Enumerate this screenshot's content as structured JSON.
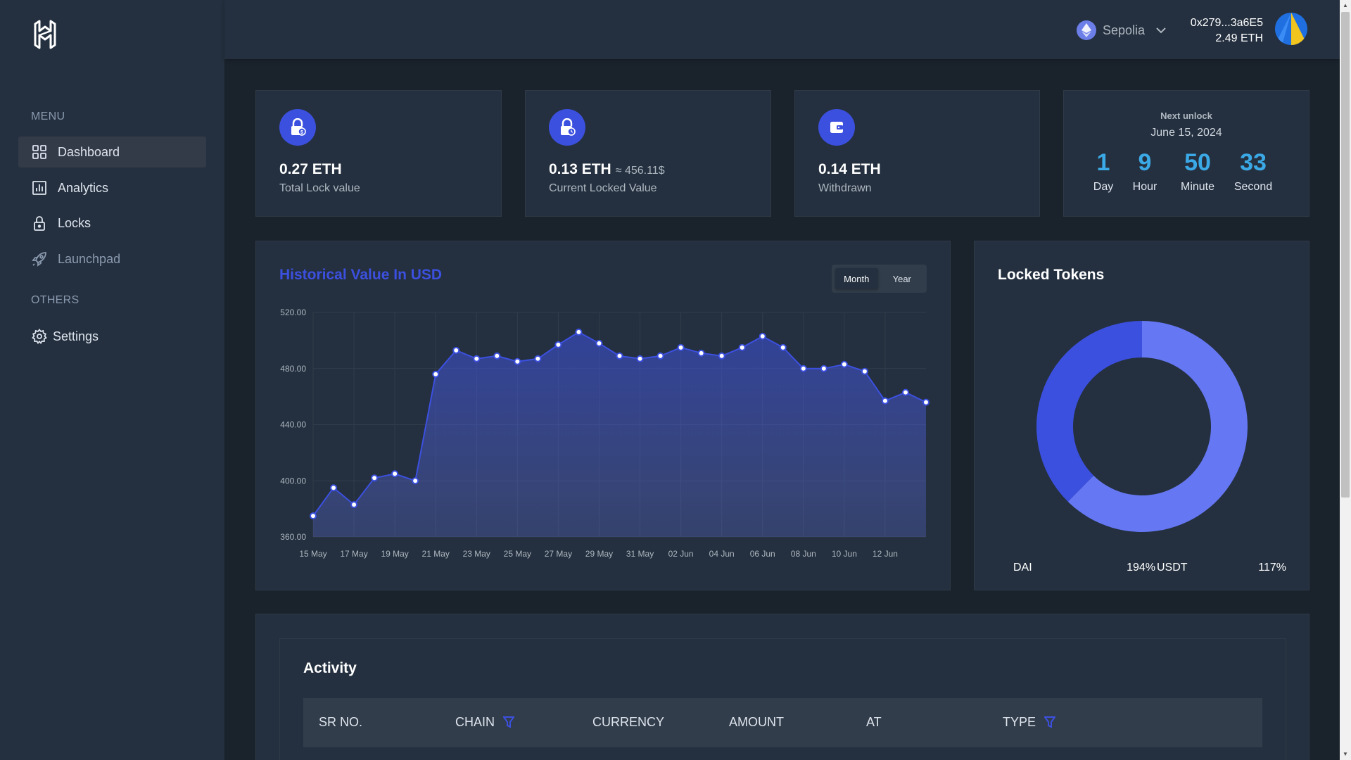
{
  "sidebar": {
    "menu_label": "MENU",
    "others_label": "OTHERS",
    "items": [
      {
        "label": "Dashboard",
        "icon": "grid-icon"
      },
      {
        "label": "Analytics",
        "icon": "chart-icon"
      },
      {
        "label": "Locks",
        "icon": "lock-icon"
      },
      {
        "label": "Launchpad",
        "icon": "rocket-icon"
      }
    ],
    "others": [
      {
        "label": "Settings",
        "icon": "gear-icon"
      }
    ]
  },
  "header": {
    "network": "Sepolia",
    "wallet_address": "0x279...3a6E5",
    "wallet_balance": "2.49 ETH"
  },
  "stats": [
    {
      "value": "0.27 ETH",
      "approx": "",
      "label": "Total Lock value",
      "icon": "lock-coin-icon"
    },
    {
      "value": "0.13 ETH",
      "approx": "≈ 456.11$",
      "label": "Current Locked Value",
      "icon": "lock-clock-icon"
    },
    {
      "value": "0.14 ETH",
      "approx": "",
      "label": "Withdrawn",
      "icon": "wallet-icon"
    }
  ],
  "next_unlock": {
    "title": "Next unlock",
    "date": "June 15, 2024",
    "countdown": [
      {
        "value": "1",
        "label": "Day"
      },
      {
        "value": "9",
        "label": "Hour"
      },
      {
        "value": "50",
        "label": "Minute"
      },
      {
        "value": "33",
        "label": "Second"
      }
    ]
  },
  "history": {
    "title": "Historical Value In USD",
    "toggle": [
      "Month",
      "Year"
    ],
    "active_toggle": "Month"
  },
  "locked_tokens": {
    "title": "Locked Tokens"
  },
  "activity": {
    "title": "Activity",
    "columns": [
      {
        "label": "SR NO.",
        "filter": false
      },
      {
        "label": "CHAIN",
        "filter": true
      },
      {
        "label": "CURRENCY",
        "filter": false
      },
      {
        "label": "AMOUNT",
        "filter": false
      },
      {
        "label": "AT",
        "filter": false
      },
      {
        "label": "TYPE",
        "filter": true
      }
    ]
  },
  "colors": {
    "accent": "#3c50e0",
    "countdown": "#3ba9e6",
    "donut_a": "#3c50e0",
    "donut_b": "#6577f3"
  },
  "chart_data": [
    {
      "type": "area",
      "title": "Historical Value In USD",
      "x": [
        "15 May",
        "16 May",
        "17 May",
        "18 May",
        "19 May",
        "20 May",
        "21 May",
        "22 May",
        "23 May",
        "24 May",
        "25 May",
        "26 May",
        "27 May",
        "28 May",
        "29 May",
        "30 May",
        "31 May",
        "01 Jun",
        "02 Jun",
        "03 Jun",
        "04 Jun",
        "05 Jun",
        "06 Jun",
        "07 Jun",
        "08 Jun",
        "09 Jun",
        "10 Jun",
        "11 Jun",
        "12 Jun",
        "13 Jun",
        "13 Jun"
      ],
      "x_ticks": [
        "15 May",
        "17 May",
        "19 May",
        "21 May",
        "23 May",
        "25 May",
        "27 May",
        "29 May",
        "31 May",
        "02 Jun",
        "04 Jun",
        "06 Jun",
        "08 Jun",
        "10 Jun",
        "12 Jun"
      ],
      "series": [
        {
          "values": [
            375,
            395,
            383,
            402,
            405,
            400,
            476,
            493,
            487,
            489,
            485,
            487,
            497,
            506,
            498,
            489,
            487,
            489,
            495,
            491,
            489,
            495,
            503,
            495,
            480,
            480,
            483,
            478,
            457,
            463,
            456
          ]
        }
      ],
      "ylim": [
        360,
        520
      ],
      "y_ticks": [
        "360.00",
        "400.00",
        "440.00",
        "480.00",
        "520.00"
      ],
      "grid": true
    },
    {
      "type": "pie",
      "title": "Locked Tokens",
      "categories": [
        "DAI",
        "USDT"
      ],
      "values": [
        194,
        117
      ],
      "labels": [
        "194%",
        "117%"
      ]
    }
  ]
}
